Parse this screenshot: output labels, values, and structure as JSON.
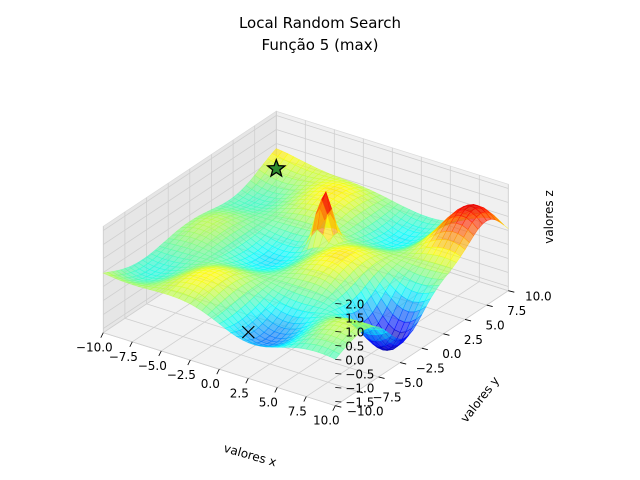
{
  "chart_data": {
    "type": "surface3d",
    "title": "Local Random Search",
    "subtitle": "Função 5 (max)",
    "xlabel": "valores x",
    "ylabel": "valores y",
    "zlabel": "valores z",
    "xlim": [
      -10,
      10
    ],
    "ylim": [
      -10,
      10
    ],
    "zlim": [
      -1.5,
      2.0
    ],
    "x_ticks": [
      "−10.0",
      "−7.5",
      "−5.0",
      "−2.5",
      "0.0",
      "2.5",
      "5.0",
      "7.5",
      "10.0"
    ],
    "y_ticks": [
      "−10.0",
      "−7.5",
      "−5.0",
      "−2.5",
      "0.0",
      "2.5",
      "5.0",
      "7.5",
      "10.0"
    ],
    "z_ticks": [
      "−1.5",
      "−1.0",
      "−0.5",
      "0.0",
      "0.5",
      "1.0",
      "1.5",
      "2.0"
    ],
    "colormap": "jet",
    "surface_alpha": 0.6,
    "grid": true,
    "markers": [
      {
        "kind": "star",
        "x": -10.0,
        "y": 10.0,
        "z": 0.1,
        "color": "#2e8b2e"
      },
      {
        "kind": "x",
        "x": 2.5,
        "y": -10.0,
        "z": 0.0,
        "color": "#000000"
      }
    ]
  }
}
